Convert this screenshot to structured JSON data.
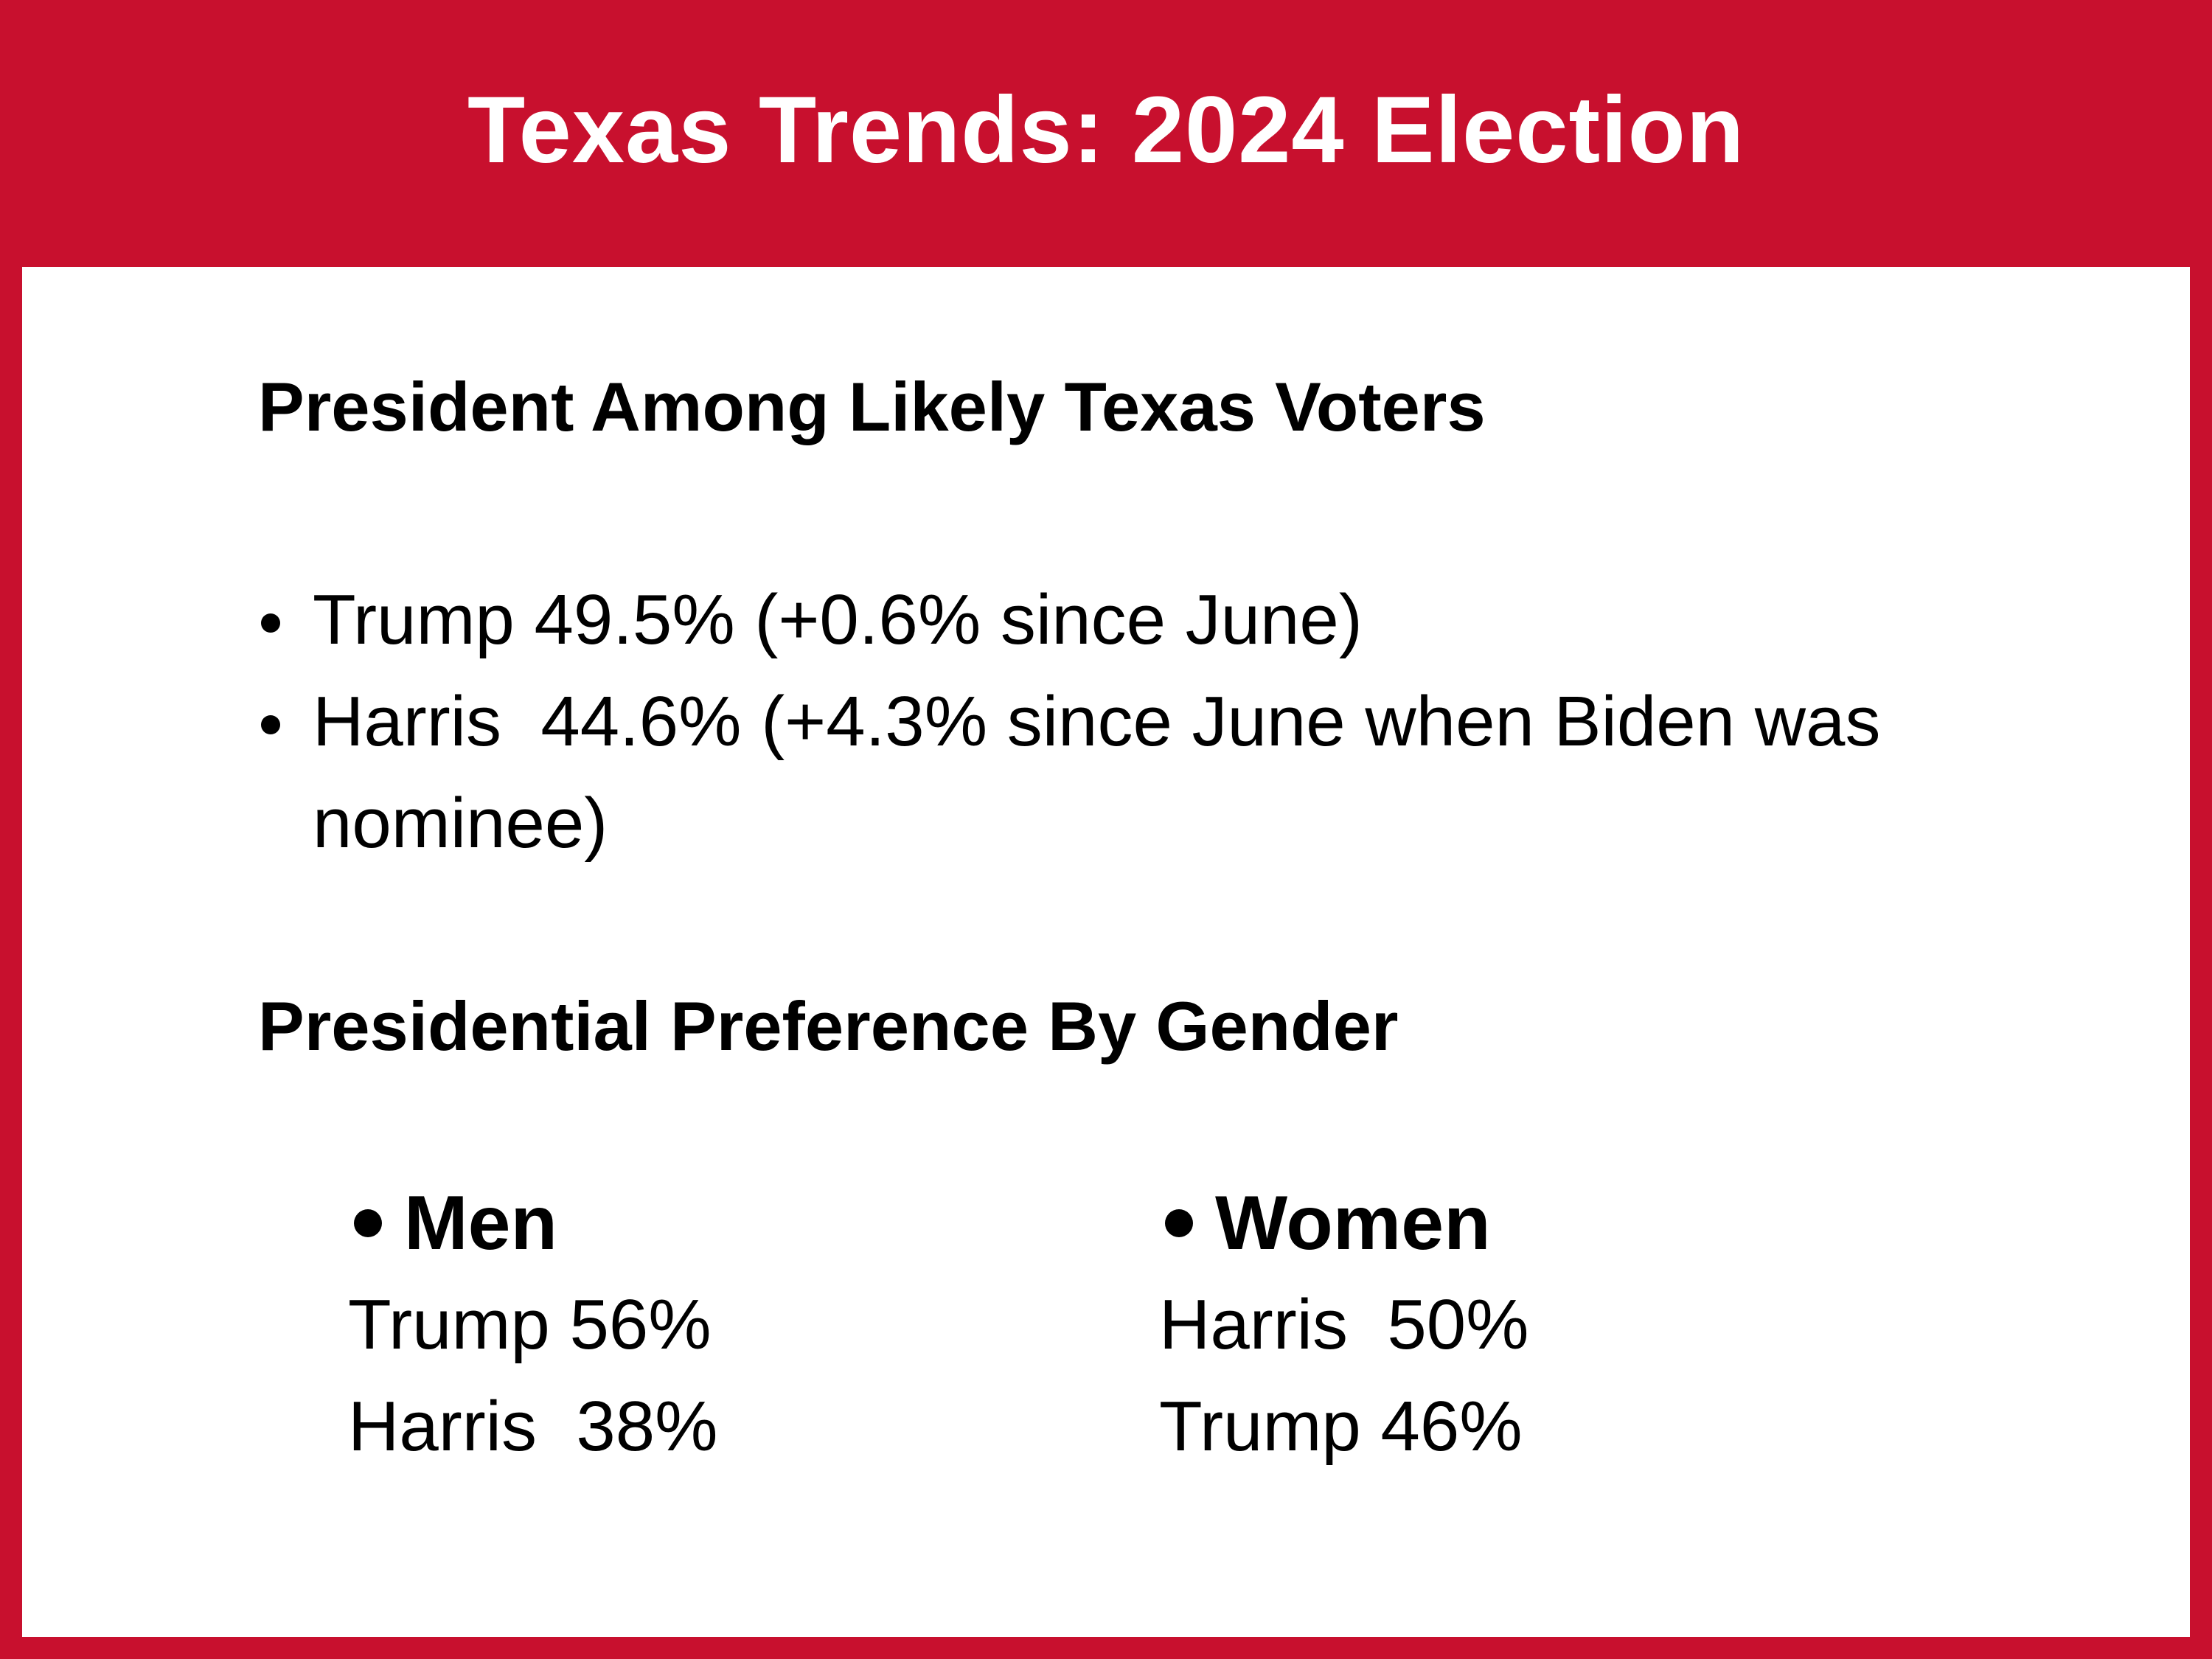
{
  "header": {
    "title": "Texas Trends: 2024 Election"
  },
  "section1": {
    "heading": "President Among Likely Texas Voters",
    "bullets": [
      "Trump 49.5% (+0.6% since June)",
      "Harris  44.6% (+4.3% since June when Biden was nominee)"
    ]
  },
  "section2": {
    "heading": "Presidential Preference By Gender",
    "men": {
      "label": "Men",
      "lines": [
        "Trump 56%",
        "Harris  38%"
      ]
    },
    "women": {
      "label": "Women",
      "lines": [
        "Harris  50%",
        "Trump 46%"
      ]
    }
  },
  "colors": {
    "accent": "#c8102e",
    "text": "#000000",
    "background": "#ffffff"
  }
}
